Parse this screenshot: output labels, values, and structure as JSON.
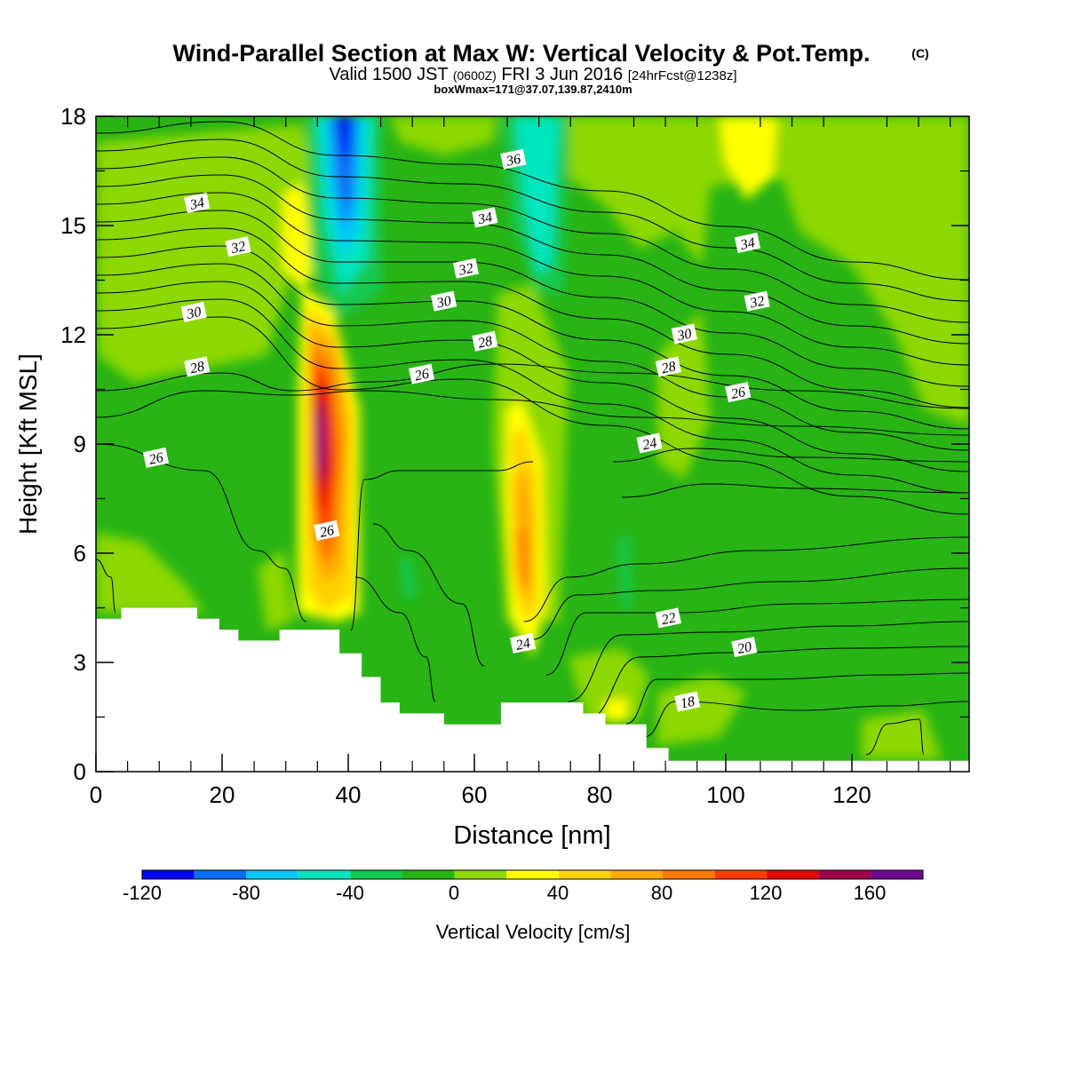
{
  "header": {
    "title": "Wind-Parallel Section at Max W: Vertical Velocity & Pot.Temp.",
    "title_mark": "(C)",
    "valid_prefix": "Valid 1500 JST",
    "valid_utc": "(0600Z)",
    "valid_date": "FRI 3 Jun 2016",
    "valid_run": "[24hrFcst@1238z]",
    "boxline": "boxWmax=171@37.07,139.87,2410m"
  },
  "chart_data": {
    "type": "heatmap",
    "xlabel": "Distance [nm]",
    "ylabel": "Height [Kft MSL]",
    "xlim": [
      0,
      138
    ],
    "ylim": [
      0,
      18
    ],
    "x_ticks": [
      "0",
      "20",
      "40",
      "60",
      "80",
      "100",
      "120"
    ],
    "x_tick_values": [
      0,
      20,
      40,
      60,
      80,
      100,
      120
    ],
    "y_ticks": [
      "0",
      "3",
      "6",
      "9",
      "12",
      "15",
      "18"
    ],
    "y_tick_values": [
      0,
      3,
      6,
      9,
      12,
      15,
      18
    ],
    "colorbar": {
      "label": "Vertical Velocity [cm/s]",
      "levels": [
        -120,
        -100,
        -80,
        -60,
        -40,
        -20,
        0,
        20,
        40,
        60,
        80,
        100,
        120,
        140,
        160,
        180
      ],
      "tick_labels": [
        "-120",
        "-80",
        "-40",
        "0",
        "40",
        "80",
        "120",
        "160"
      ],
      "tick_values": [
        -120,
        -80,
        -40,
        0,
        40,
        80,
        120,
        160
      ],
      "colors": [
        "#0000f0",
        "#0a6ef5",
        "#00c8f8",
        "#00e6c0",
        "#14c850",
        "#28b414",
        "#8cd800",
        "#ffff00",
        "#ffd200",
        "#ffaa00",
        "#ff7800",
        "#ff3c00",
        "#e60000",
        "#a0004b",
        "#6e0a8c"
      ]
    },
    "terrain_kft": [
      [
        0,
        4.2
      ],
      [
        4,
        4.2
      ],
      [
        4,
        4.5
      ],
      [
        16,
        4.5
      ],
      [
        16,
        4.2
      ],
      [
        19.5,
        4.2
      ],
      [
        19.5,
        3.9
      ],
      [
        22.5,
        3.9
      ],
      [
        22.5,
        3.6
      ],
      [
        29,
        3.6
      ],
      [
        29,
        3.9
      ],
      [
        38.5,
        3.9
      ],
      [
        38.5,
        3.25
      ],
      [
        42,
        3.25
      ],
      [
        42,
        2.6
      ],
      [
        45,
        2.6
      ],
      [
        45,
        1.9
      ],
      [
        48,
        1.9
      ],
      [
        48,
        1.6
      ],
      [
        55,
        1.6
      ],
      [
        55,
        1.3
      ],
      [
        64,
        1.3
      ],
      [
        64,
        1.9
      ],
      [
        77,
        1.9
      ],
      [
        77,
        1.6
      ],
      [
        80.5,
        1.6
      ],
      [
        80.5,
        1.3
      ],
      [
        87,
        1.3
      ],
      [
        87,
        0.65
      ],
      [
        90.5,
        0.65
      ],
      [
        90.5,
        0.3
      ],
      [
        138,
        0.3
      ]
    ],
    "contour_labels": [
      {
        "text": "34",
        "x": 16,
        "y": 15.6
      },
      {
        "text": "32",
        "x": 22.5,
        "y": 14.4
      },
      {
        "text": "30",
        "x": 15.5,
        "y": 12.6
      },
      {
        "text": "28",
        "x": 16,
        "y": 11.1
      },
      {
        "text": "26",
        "x": 9.5,
        "y": 8.6
      },
      {
        "text": "26",
        "x": 36.5,
        "y": 6.6
      },
      {
        "text": "36",
        "x": 66,
        "y": 16.8
      },
      {
        "text": "34",
        "x": 61.5,
        "y": 15.2
      },
      {
        "text": "32",
        "x": 58.5,
        "y": 13.8
      },
      {
        "text": "30",
        "x": 55,
        "y": 12.9
      },
      {
        "text": "28",
        "x": 61.5,
        "y": 11.8
      },
      {
        "text": "26",
        "x": 51.5,
        "y": 10.9
      },
      {
        "text": "24",
        "x": 67.5,
        "y": 3.5
      },
      {
        "text": "34",
        "x": 103,
        "y": 14.5
      },
      {
        "text": "32",
        "x": 104.5,
        "y": 12.9
      },
      {
        "text": "30",
        "x": 93,
        "y": 12.0
      },
      {
        "text": "28",
        "x": 90.5,
        "y": 11.1
      },
      {
        "text": "26",
        "x": 101.5,
        "y": 10.4
      },
      {
        "text": "24",
        "x": 87.5,
        "y": 9.0
      },
      {
        "text": "22",
        "x": 90.5,
        "y": 4.2
      },
      {
        "text": "20",
        "x": 102.5,
        "y": 3.4
      },
      {
        "text": "18",
        "x": 93.5,
        "y": 1.9
      }
    ]
  }
}
